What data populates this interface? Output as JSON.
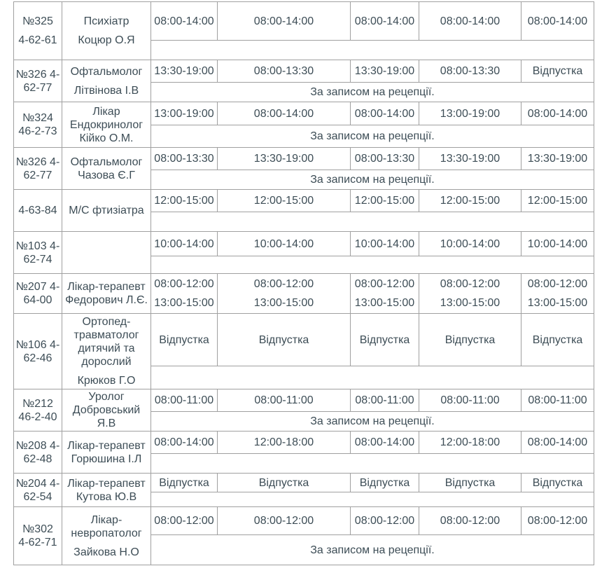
{
  "table": {
    "text_color": "#3d4d56",
    "border_color": "#a0a0a0",
    "rows": [
      {
        "room": [
          [
            "№325"
          ],
          [
            "4-62-61"
          ]
        ],
        "doctor": [
          [
            "Психіатр"
          ],
          [
            "Коцюр О.Я"
          ]
        ],
        "times": [
          [
            [
              "08:00-14:00"
            ]
          ],
          [
            [
              "08:00-14:00"
            ]
          ],
          [
            [
              "08:00-14:00"
            ]
          ],
          [
            [
              "08:00-14:00"
            ]
          ],
          [
            [
              "08:00-14:00"
            ]
          ]
        ],
        "note": ""
      },
      {
        "room": [
          [
            "№326 4-",
            "62-77"
          ]
        ],
        "doctor": [
          [
            "Офтальмолог"
          ],
          [
            "Літвінова І.В"
          ]
        ],
        "times": [
          [
            [
              "13:30-19:00"
            ]
          ],
          [
            [
              "08:00-13:30"
            ]
          ],
          [
            [
              "13:30-19:00"
            ]
          ],
          [
            [
              "08:00-13:30"
            ]
          ],
          [
            [
              "Відпустка"
            ]
          ]
        ],
        "note": "За записом на рецепції."
      },
      {
        "room": [
          [
            "№324",
            "46-2-73"
          ]
        ],
        "doctor": [
          [
            "Лікар",
            "Ендокринолог",
            "Кійко О.М."
          ]
        ],
        "times": [
          [
            [
              "13:00-19:00"
            ]
          ],
          [
            [
              "08:00-14:00"
            ]
          ],
          [
            [
              "08:00-14:00"
            ]
          ],
          [
            [
              "13:00-19:00"
            ]
          ],
          [
            [
              "08:00-14:00"
            ]
          ]
        ],
        "note": "За записом на рецепції."
      },
      {
        "room": [
          [
            "№326 4-",
            "62-77"
          ]
        ],
        "doctor": [
          [
            "Офтальмолог",
            "Чазова Є.Г"
          ]
        ],
        "times": [
          [
            [
              "08:00-13:30"
            ]
          ],
          [
            [
              "13:30-19:00"
            ]
          ],
          [
            [
              "08:00-13:30"
            ]
          ],
          [
            [
              "13:30-19:00"
            ]
          ],
          [
            [
              "13:30-19:00"
            ]
          ]
        ],
        "note": "За записом на рецепції."
      },
      {
        "room": [
          [
            "4-63-84"
          ]
        ],
        "doctor": [
          [
            "М/С фтизіатра"
          ]
        ],
        "times": [
          [
            [
              "12:00-15:00"
            ]
          ],
          [
            [
              "12:00-15:00"
            ]
          ],
          [
            [
              "12:00-15:00"
            ]
          ],
          [
            [
              "12:00-15:00"
            ]
          ],
          [
            [
              "12:00-15:00"
            ]
          ]
        ],
        "note": ""
      },
      {
        "room": [
          [
            "№103 4-",
            "62-74"
          ]
        ],
        "doctor": [],
        "times": [
          [
            [
              "10:00-14:00"
            ]
          ],
          [
            [
              "10:00-14:00"
            ]
          ],
          [
            [
              "10:00-14:00"
            ]
          ],
          [
            [
              "10:00-14:00"
            ]
          ],
          [
            [
              "10:00-14:00"
            ]
          ]
        ],
        "note": ""
      },
      {
        "room": [
          [
            "№207 4-",
            "64-00"
          ]
        ],
        "doctor": [
          [
            "Лікар-терапевт",
            "Федорович Л.Є."
          ]
        ],
        "times": [
          [
            [
              "08:00-12:00"
            ],
            [
              "13:00-15:00"
            ]
          ],
          [
            [
              "08:00-12:00"
            ],
            [
              "13:00-15:00"
            ]
          ],
          [
            [
              "08:00-12:00"
            ],
            [
              "13:00-15:00"
            ]
          ],
          [
            [
              "08:00-12:00"
            ],
            [
              "13:00-15:00"
            ]
          ],
          [
            [
              "08:00-12:00"
            ],
            [
              "13:00-15:00"
            ]
          ]
        ],
        "note": null
      },
      {
        "room": [
          [
            "№106 4-",
            "62-46"
          ]
        ],
        "doctor": [
          [
            "Ортопед-",
            "травматолог",
            "дитячий та",
            "дорослий"
          ],
          [
            "Крюков Г.О"
          ]
        ],
        "times": [
          [
            [
              "Відпустка"
            ]
          ],
          [
            [
              "Відпустка"
            ]
          ],
          [
            [
              "Відпустка"
            ]
          ],
          [
            [
              "Відпустка"
            ]
          ],
          [
            [
              "Відпустка"
            ]
          ]
        ],
        "note": ""
      },
      {
        "room": [
          [
            "№212",
            "46-2-40"
          ]
        ],
        "doctor": [
          [
            "Уролог",
            "Добровський Я.В"
          ]
        ],
        "times": [
          [
            [
              "08:00-11:00"
            ]
          ],
          [
            [
              "08:00-11:00"
            ]
          ],
          [
            [
              "08:00-11:00"
            ]
          ],
          [
            [
              "08:00-11:00"
            ]
          ],
          [
            [
              "08:00-11:00"
            ]
          ]
        ],
        "note": "За записом на рецепції."
      },
      {
        "room": [
          [
            "№208 4-",
            "62-48"
          ]
        ],
        "doctor": [
          [
            "Лікар-терапевт",
            "Горюшина І.Л"
          ]
        ],
        "times": [
          [
            [
              "08:00-14:00"
            ]
          ],
          [
            [
              "12:00-18:00"
            ]
          ],
          [
            [
              "08:00-14:00"
            ]
          ],
          [
            [
              "12:00-18:00"
            ]
          ],
          [
            [
              "08:00-14:00"
            ]
          ]
        ],
        "note": ""
      },
      {
        "room": [
          [
            "№204 4-",
            "62-54"
          ]
        ],
        "doctor": [
          [
            "Лікар-терапевт",
            "Кутова Ю.В"
          ]
        ],
        "times": [
          [
            [
              "Відпустка"
            ]
          ],
          [
            [
              "Відпустка"
            ]
          ],
          [
            [
              "Відпустка"
            ]
          ],
          [
            [
              "Відпустка"
            ]
          ],
          [
            [
              "Відпустка"
            ]
          ]
        ],
        "note": ""
      },
      {
        "room": [
          [
            "№302",
            "4-62-71"
          ]
        ],
        "doctor": [
          [
            "Лікар-",
            "невропатолог"
          ],
          [
            "Зайкова Н.О"
          ]
        ],
        "times": [
          [
            [
              "08:00-12:00"
            ]
          ],
          [
            [
              "08:00-12:00"
            ]
          ],
          [
            [
              "08:00-12:00"
            ]
          ],
          [
            [
              "08:00-12:00"
            ]
          ],
          [
            [
              "08:00-12:00"
            ]
          ]
        ],
        "note": "За записом на рецепції."
      }
    ]
  }
}
